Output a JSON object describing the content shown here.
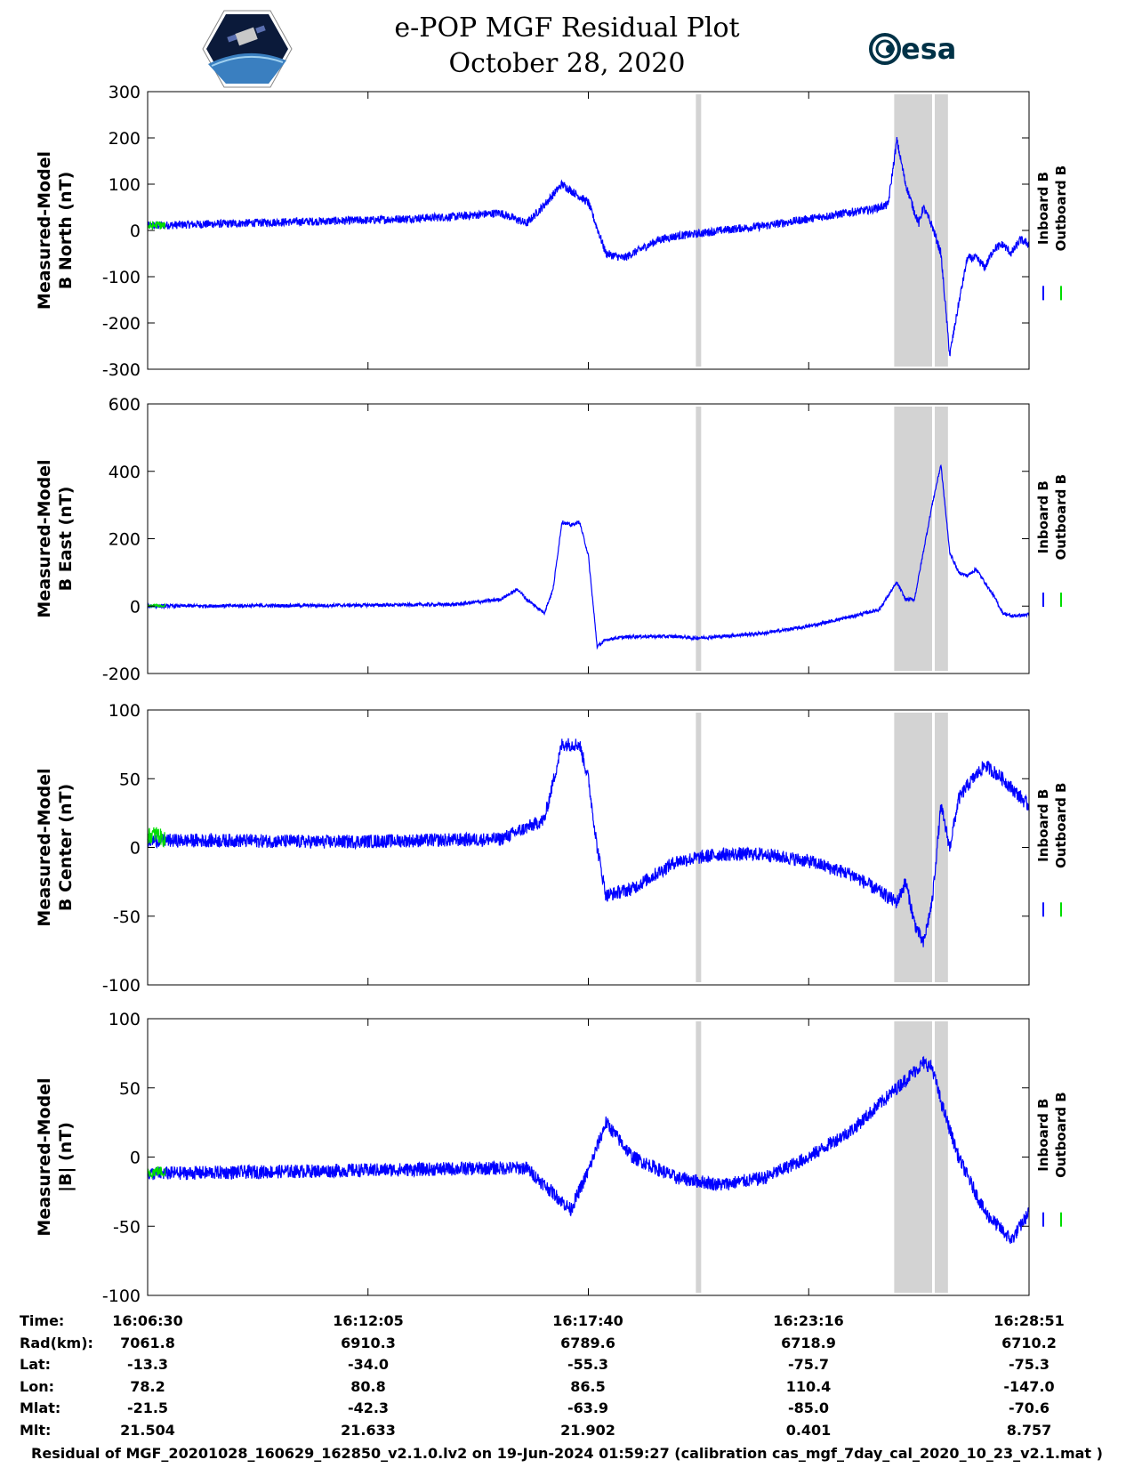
{
  "header": {
    "title_line1": "e-POP MGF Residual Plot",
    "title_line2": "October 28, 2020",
    "logo_left": "cassiope-mission-logo",
    "logo_right": "esa-logo",
    "esa_text": "esa"
  },
  "colors": {
    "inboard": "#0000ff",
    "outboard": "#00dd00",
    "gap_shading": "#d3d3d3"
  },
  "chart_data": [
    {
      "type": "line",
      "ylabel_line1": "Measured-Model",
      "ylabel_line2": "B North (nT)",
      "ylim": [
        -300,
        300
      ],
      "yticks": [
        "300",
        "200",
        "100",
        "0",
        "-100",
        "-200",
        "-300"
      ],
      "legend": [
        "Inboard B",
        "Outboard B"
      ],
      "series": [
        {
          "name": "Inboard B",
          "color": "#0000ff",
          "x": [
            0,
            0.05,
            0.1,
            0.15,
            0.2,
            0.25,
            0.3,
            0.35,
            0.4,
            0.43,
            0.45,
            0.47,
            0.5,
            0.52,
            0.54,
            0.56,
            0.58,
            0.6,
            0.62,
            0.65,
            0.7,
            0.75,
            0.8,
            0.82,
            0.84,
            0.85,
            0.86,
            0.87,
            0.875,
            0.88,
            0.89,
            0.9,
            0.91,
            0.92,
            0.93,
            0.94,
            0.95,
            0.96,
            0.97,
            0.98,
            0.99,
            1.0
          ],
          "y": [
            10,
            13,
            15,
            18,
            20,
            22,
            26,
            30,
            38,
            15,
            55,
            100,
            60,
            -50,
            -60,
            -40,
            -20,
            -12,
            -8,
            0,
            10,
            25,
            40,
            45,
            55,
            195,
            100,
            40,
            15,
            50,
            10,
            -50,
            -270,
            -160,
            -60,
            -60,
            -80,
            -40,
            -30,
            -50,
            -20,
            -30
          ],
          "noise": 9
        },
        {
          "name": "Outboard B",
          "color": "#00dd00",
          "x": [
            0,
            0.01,
            0.02
          ],
          "y": [
            8,
            12,
            10
          ],
          "noise": 9
        }
      ]
    },
    {
      "type": "line",
      "ylabel_line1": "Measured-Model",
      "ylabel_line2": "B East (nT)",
      "ylim": [
        -200,
        600
      ],
      "yticks": [
        "600",
        "400",
        "200",
        "0",
        "-200"
      ],
      "legend": [
        "Inboard B",
        "Outboard B"
      ],
      "series": [
        {
          "name": "Inboard B",
          "color": "#0000ff",
          "x": [
            0,
            0.2,
            0.35,
            0.4,
            0.42,
            0.43,
            0.45,
            0.46,
            0.47,
            0.48,
            0.49,
            0.5,
            0.51,
            0.52,
            0.53,
            0.55,
            0.6,
            0.62,
            0.65,
            0.7,
            0.75,
            0.8,
            0.83,
            0.85,
            0.86,
            0.87,
            0.89,
            0.9,
            0.91,
            0.92,
            0.93,
            0.94,
            0.96,
            0.97,
            0.98,
            1.0
          ],
          "y": [
            0,
            2,
            5,
            20,
            50,
            20,
            -20,
            50,
            250,
            240,
            250,
            150,
            -120,
            -100,
            -95,
            -90,
            -90,
            -95,
            -90,
            -80,
            -60,
            -30,
            -10,
            70,
            20,
            20,
            300,
            420,
            160,
            100,
            90,
            110,
            30,
            -20,
            -30,
            -25
          ],
          "noise": 5
        },
        {
          "name": "Outboard B",
          "color": "#00dd00",
          "x": [
            0,
            0.01,
            0.02
          ],
          "y": [
            0,
            2,
            1
          ],
          "noise": 4
        }
      ]
    },
    {
      "type": "line",
      "ylabel_line1": "Measured-Model",
      "ylabel_line2": "B Center (nT)",
      "ylim": [
        -100,
        100
      ],
      "yticks": [
        "100",
        "50",
        "0",
        "-50",
        "-100"
      ],
      "legend": [
        "Inboard B",
        "Outboard B"
      ],
      "series": [
        {
          "name": "Inboard B",
          "color": "#0000ff",
          "x": [
            0,
            0.1,
            0.2,
            0.3,
            0.4,
            0.45,
            0.47,
            0.49,
            0.5,
            0.51,
            0.52,
            0.55,
            0.6,
            0.65,
            0.7,
            0.75,
            0.8,
            0.85,
            0.86,
            0.87,
            0.88,
            0.89,
            0.9,
            0.91,
            0.92,
            0.93,
            0.95,
            0.97,
            1.0
          ],
          "y": [
            5,
            5,
            4,
            5,
            6,
            20,
            75,
            75,
            50,
            0,
            -35,
            -30,
            -10,
            -5,
            -5,
            -10,
            -20,
            -40,
            -25,
            -55,
            -70,
            -40,
            30,
            0,
            35,
            45,
            60,
            50,
            30
          ],
          "noise": 5
        },
        {
          "name": "Outboard B",
          "color": "#00dd00",
          "x": [
            0,
            0.01,
            0.02
          ],
          "y": [
            8,
            10,
            5
          ],
          "noise": 6
        }
      ]
    },
    {
      "type": "line",
      "ylabel_line1": "Measured-Model",
      "ylabel_line2": "|B| (nT)",
      "ylim": [
        -100,
        100
      ],
      "yticks": [
        "100",
        "50",
        "0",
        "-50",
        "-100"
      ],
      "legend": [
        "Inboard B",
        "Outboard B"
      ],
      "series": [
        {
          "name": "Inboard B",
          "color": "#0000ff",
          "x": [
            0,
            0.1,
            0.2,
            0.3,
            0.4,
            0.43,
            0.45,
            0.48,
            0.5,
            0.52,
            0.55,
            0.6,
            0.65,
            0.7,
            0.75,
            0.8,
            0.85,
            0.88,
            0.89,
            0.9,
            0.92,
            0.95,
            0.98,
            1.0
          ],
          "y": [
            -12,
            -11,
            -10,
            -9,
            -8,
            -8,
            -20,
            -38,
            -10,
            25,
            0,
            -15,
            -20,
            -15,
            0,
            20,
            50,
            68,
            65,
            40,
            0,
            -40,
            -60,
            -40
          ],
          "noise": 5
        },
        {
          "name": "Outboard B",
          "color": "#00dd00",
          "x": [
            0,
            0.01,
            0.02
          ],
          "y": [
            -12,
            -10,
            -11
          ],
          "noise": 4
        }
      ]
    }
  ],
  "gaps": [
    [
      0.622,
      0.628
    ],
    [
      0.847,
      0.89
    ],
    [
      0.893,
      0.908
    ]
  ],
  "position_table": {
    "rows": [
      {
        "label": "Time:",
        "values": [
          "16:06:30",
          "16:12:05",
          "16:17:40",
          "16:23:16",
          "16:28:51"
        ]
      },
      {
        "label": "Rad(km):",
        "values": [
          "7061.8",
          "6910.3",
          "6789.6",
          "6718.9",
          "6710.2"
        ]
      },
      {
        "label": "Lat:",
        "values": [
          "-13.3",
          "-34.0",
          "-55.3",
          "-75.7",
          "-75.3"
        ]
      },
      {
        "label": "Lon:",
        "values": [
          "78.2",
          "80.8",
          "86.5",
          "110.4",
          "-147.0"
        ]
      },
      {
        "label": "Mlat:",
        "values": [
          "-21.5",
          "-42.3",
          "-63.9",
          "-85.0",
          "-70.6"
        ]
      },
      {
        "label": "Mlt:",
        "values": [
          "21.504",
          "21.633",
          "21.902",
          "0.401",
          "8.757"
        ]
      }
    ]
  },
  "footer": "Residual of MGF_20201028_160629_162850_v2.1.0.lv2 on 19-Jun-2024 01:59:27 (calibration cas_mgf_7day_cal_2020_10_23_v2.1.mat )"
}
